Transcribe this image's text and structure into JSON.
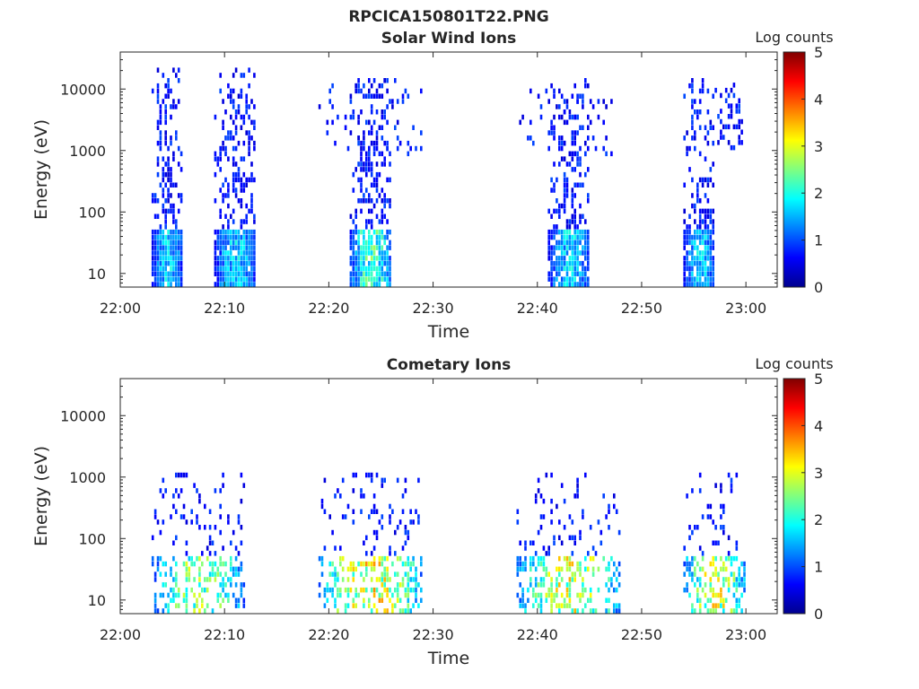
{
  "figure": {
    "title": "RPCICA150801T22.PNG"
  },
  "chart_data": [
    {
      "type": "heatmap",
      "title": "Solar Wind Ions",
      "xlabel": "Time",
      "ylabel": "Energy (eV)",
      "x_range": [
        "22:00",
        "23:03"
      ],
      "x_ticks": [
        "22:00",
        "22:10",
        "22:20",
        "22:30",
        "22:40",
        "22:50",
        "23:00"
      ],
      "y_scale": "log",
      "y_range": [
        6,
        40000
      ],
      "y_ticks": [
        10,
        100,
        1000,
        10000
      ],
      "y_tick_labels": [
        "10",
        "100",
        "1000",
        "10000"
      ],
      "colorbar": {
        "label": "Log counts",
        "range": [
          0,
          5
        ],
        "ticks": [
          "0",
          "1",
          "2",
          "3",
          "4",
          "5"
        ],
        "colormap": "jet"
      },
      "sweeps": [
        {
          "start": "22:03",
          "end": "22:06",
          "emin": 6,
          "emax": 20000,
          "core_emax": 45,
          "core_level": 2.0,
          "density": 0.55
        },
        {
          "start": "22:09",
          "end": "22:13",
          "emin": 6,
          "emax": 20000,
          "core_emax": 45,
          "core_level": 2.0,
          "density": 0.55
        },
        {
          "start": "22:19",
          "end": "22:29",
          "emin": 800,
          "emax": 15000,
          "core_emax": 45,
          "core_level": 0.0,
          "density": 0.18
        },
        {
          "start": "22:22",
          "end": "22:26",
          "emin": 6,
          "emax": 15000,
          "core_emax": 45,
          "core_level": 2.6,
          "density": 0.5
        },
        {
          "start": "22:38",
          "end": "22:48",
          "emin": 800,
          "emax": 10000,
          "core_emax": 45,
          "core_level": 0.0,
          "density": 0.15
        },
        {
          "start": "22:41",
          "end": "22:45",
          "emin": 6,
          "emax": 15000,
          "core_emax": 45,
          "core_level": 2.0,
          "density": 0.5
        },
        {
          "start": "22:54",
          "end": "22:57",
          "emin": 6,
          "emax": 15000,
          "core_emax": 45,
          "core_level": 2.0,
          "density": 0.5
        },
        {
          "start": "22:57",
          "end": "23:00",
          "emin": 1000,
          "emax": 12000,
          "core_emax": 45,
          "core_level": 0.0,
          "density": 0.3
        }
      ]
    },
    {
      "type": "heatmap",
      "title": "Cometary Ions",
      "xlabel": "Time",
      "ylabel": "Energy (eV)",
      "x_range": [
        "22:00",
        "23:03"
      ],
      "x_ticks": [
        "22:00",
        "22:10",
        "22:20",
        "22:30",
        "22:40",
        "22:50",
        "23:00"
      ],
      "y_scale": "log",
      "y_range": [
        6,
        40000
      ],
      "y_ticks": [
        10,
        100,
        1000,
        10000
      ],
      "y_tick_labels": [
        "10",
        "100",
        "1000",
        "10000"
      ],
      "colorbar": {
        "label": "Log counts",
        "range": [
          0,
          5
        ],
        "ticks": [
          "0",
          "1",
          "2",
          "3",
          "4",
          "5"
        ],
        "colormap": "jet"
      },
      "sweeps": [
        {
          "start": "22:03",
          "end": "22:12",
          "emin": 6,
          "emax": 1100,
          "core_emax": 45,
          "core_level": 3.0,
          "density": 0.22
        },
        {
          "start": "22:19",
          "end": "22:29",
          "emin": 6,
          "emax": 1100,
          "core_emax": 45,
          "core_level": 3.6,
          "density": 0.22
        },
        {
          "start": "22:38",
          "end": "22:48",
          "emin": 6,
          "emax": 1100,
          "core_emax": 45,
          "core_level": 3.4,
          "density": 0.22
        },
        {
          "start": "22:54",
          "end": "23:00",
          "emin": 6,
          "emax": 1100,
          "core_emax": 45,
          "core_level": 3.4,
          "density": 0.22
        }
      ]
    }
  ]
}
